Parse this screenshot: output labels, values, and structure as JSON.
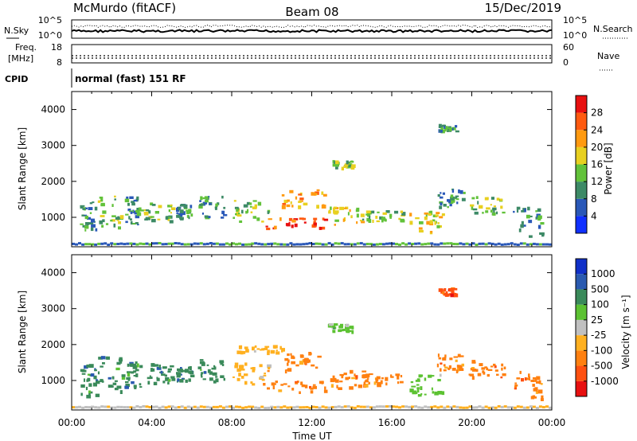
{
  "header": {
    "station": "McMurdo (fitACF)",
    "beam": "Beam 08",
    "date": "15/Dec/2019"
  },
  "chart_data": [
    {
      "type": "line",
      "name": "noise",
      "left_label": "N.Sky",
      "right_label": "N.Search",
      "left_ticks": [
        "10^5",
        "10^0"
      ],
      "right_ticks": [
        "10^5",
        "10^0"
      ],
      "y_scale": "log"
    },
    {
      "type": "line",
      "name": "frequency-nave",
      "left_label_1": "Freq.",
      "left_label_2": "[MHz]",
      "right_label": "Nave",
      "left_ticks": [
        "18",
        "8"
      ],
      "right_ticks": [
        "60",
        "0"
      ],
      "freq_ylim": [
        8,
        18
      ],
      "nave_ylim": [
        0,
        60
      ]
    },
    {
      "type": "table",
      "name": "cpid",
      "label": "CPID",
      "value": "normal (fast) 151 RF"
    },
    {
      "type": "heatmap",
      "name": "power",
      "title": "",
      "xlabel": "",
      "ylabel": "Slant Range [km]",
      "ylim": [
        180,
        4500
      ],
      "yticks": [
        "1000",
        "2000",
        "3000",
        "4000"
      ],
      "colorbar_label": "Power [dB]",
      "colorbar_ticks": [
        "4",
        "8",
        "12",
        "16",
        "20",
        "24",
        "28"
      ],
      "colorbar_colors": [
        "#1030ff",
        "#2a58b8",
        "#3d8a66",
        "#62c23a",
        "#e8d020",
        "#ff9a10",
        "#ff5a10",
        "#e81010"
      ],
      "echo_regions": [
        {
          "t": [
            0.4,
            1.2
          ],
          "r": [
            600,
            1500
          ],
          "level": 2
        },
        {
          "t": [
            1.3,
            2.5
          ],
          "r": [
            700,
            1700
          ],
          "level": 3
        },
        {
          "t": [
            2.6,
            3.4
          ],
          "r": [
            800,
            1600
          ],
          "level": 2
        },
        {
          "t": [
            3.6,
            5.0
          ],
          "r": [
            900,
            1500
          ],
          "level": 3
        },
        {
          "t": [
            5.2,
            6.0
          ],
          "r": [
            1000,
            1400
          ],
          "level": 2
        },
        {
          "t": [
            6.3,
            7.6
          ],
          "r": [
            1000,
            1600
          ],
          "level": 2
        },
        {
          "t": [
            8.0,
            9.8
          ],
          "r": [
            900,
            1500
          ],
          "level": 3
        },
        {
          "t": [
            9.5,
            12.8
          ],
          "r": [
            700,
            1000
          ],
          "level": 6
        },
        {
          "t": [
            10.5,
            12.6
          ],
          "r": [
            1300,
            1800
          ],
          "level": 5
        },
        {
          "t": [
            12.8,
            14.8
          ],
          "r": [
            800,
            1300
          ],
          "level": 4
        },
        {
          "t": [
            14.5,
            16.5
          ],
          "r": [
            900,
            1200
          ],
          "level": 3
        },
        {
          "t": [
            16.8,
            18.5
          ],
          "r": [
            600,
            1200
          ],
          "level": 4
        },
        {
          "t": [
            18.2,
            19.6
          ],
          "r": [
            1300,
            1800
          ],
          "level": 2
        },
        {
          "t": [
            19.8,
            21.6
          ],
          "r": [
            1100,
            1600
          ],
          "level": 3
        },
        {
          "t": [
            22.0,
            23.6
          ],
          "r": [
            500,
            1300
          ],
          "level": 2
        },
        {
          "t": [
            12.8,
            14.0
          ],
          "r": [
            2400,
            2600
          ],
          "level": 3
        },
        {
          "t": [
            18.3,
            19.2
          ],
          "r": [
            3400,
            3600
          ],
          "level": 2
        }
      ]
    },
    {
      "type": "heatmap",
      "name": "velocity",
      "title": "",
      "xlabel": "Time UT",
      "ylabel": "Slant Range [km]",
      "ylim": [
        180,
        4500
      ],
      "yticks": [
        "1000",
        "2000",
        "3000",
        "4000"
      ],
      "xticks": [
        "00:00",
        "04:00",
        "08:00",
        "12:00",
        "16:00",
        "20:00",
        "00:00"
      ],
      "colorbar_label": "Velocity [m s⁻¹]",
      "colorbar_ticks": [
        "1000",
        "500",
        "100",
        "25",
        "-25",
        "-100",
        "-500",
        "-1000"
      ],
      "colorbar_colors": [
        "#1030c8",
        "#2a5ab0",
        "#3a8a5a",
        "#5cc232",
        "#c0c0c0",
        "#ffb020",
        "#ff8010",
        "#ff5010",
        "#e81010"
      ],
      "echo_regions": [
        {
          "t": [
            0.4,
            1.2
          ],
          "r": [
            600,
            1500
          ],
          "cls": 2
        },
        {
          "t": [
            1.3,
            2.5
          ],
          "r": [
            700,
            1700
          ],
          "cls": 2
        },
        {
          "t": [
            2.6,
            3.4
          ],
          "r": [
            800,
            1600
          ],
          "cls": 2
        },
        {
          "t": [
            3.6,
            5.0
          ],
          "r": [
            900,
            1500
          ],
          "cls": 2
        },
        {
          "t": [
            5.2,
            6.0
          ],
          "r": [
            1000,
            1400
          ],
          "cls": 2
        },
        {
          "t": [
            6.3,
            7.6
          ],
          "r": [
            1000,
            1600
          ],
          "cls": 2
        },
        {
          "t": [
            8.0,
            9.8
          ],
          "r": [
            900,
            1500
          ],
          "cls": 5
        },
        {
          "t": [
            9.5,
            12.8
          ],
          "r": [
            700,
            1000
          ],
          "cls": 6
        },
        {
          "t": [
            10.5,
            12.6
          ],
          "r": [
            1300,
            1800
          ],
          "cls": 6
        },
        {
          "t": [
            8.2,
            10.5
          ],
          "r": [
            1800,
            2000
          ],
          "cls": 5
        },
        {
          "t": [
            12.8,
            14.8
          ],
          "r": [
            800,
            1300
          ],
          "cls": 6
        },
        {
          "t": [
            14.5,
            16.5
          ],
          "r": [
            900,
            1200
          ],
          "cls": 6
        },
        {
          "t": [
            16.8,
            18.5
          ],
          "r": [
            600,
            1200
          ],
          "cls": 3
        },
        {
          "t": [
            18.2,
            19.6
          ],
          "r": [
            1300,
            1800
          ],
          "cls": 6
        },
        {
          "t": [
            19.8,
            21.6
          ],
          "r": [
            1100,
            1600
          ],
          "cls": 6
        },
        {
          "t": [
            22.0,
            23.6
          ],
          "r": [
            500,
            1300
          ],
          "cls": 6
        },
        {
          "t": [
            12.8,
            14.0
          ],
          "r": [
            2400,
            2600
          ],
          "cls": 3
        },
        {
          "t": [
            18.3,
            19.2
          ],
          "r": [
            3400,
            3600
          ],
          "cls": 7
        }
      ]
    }
  ]
}
